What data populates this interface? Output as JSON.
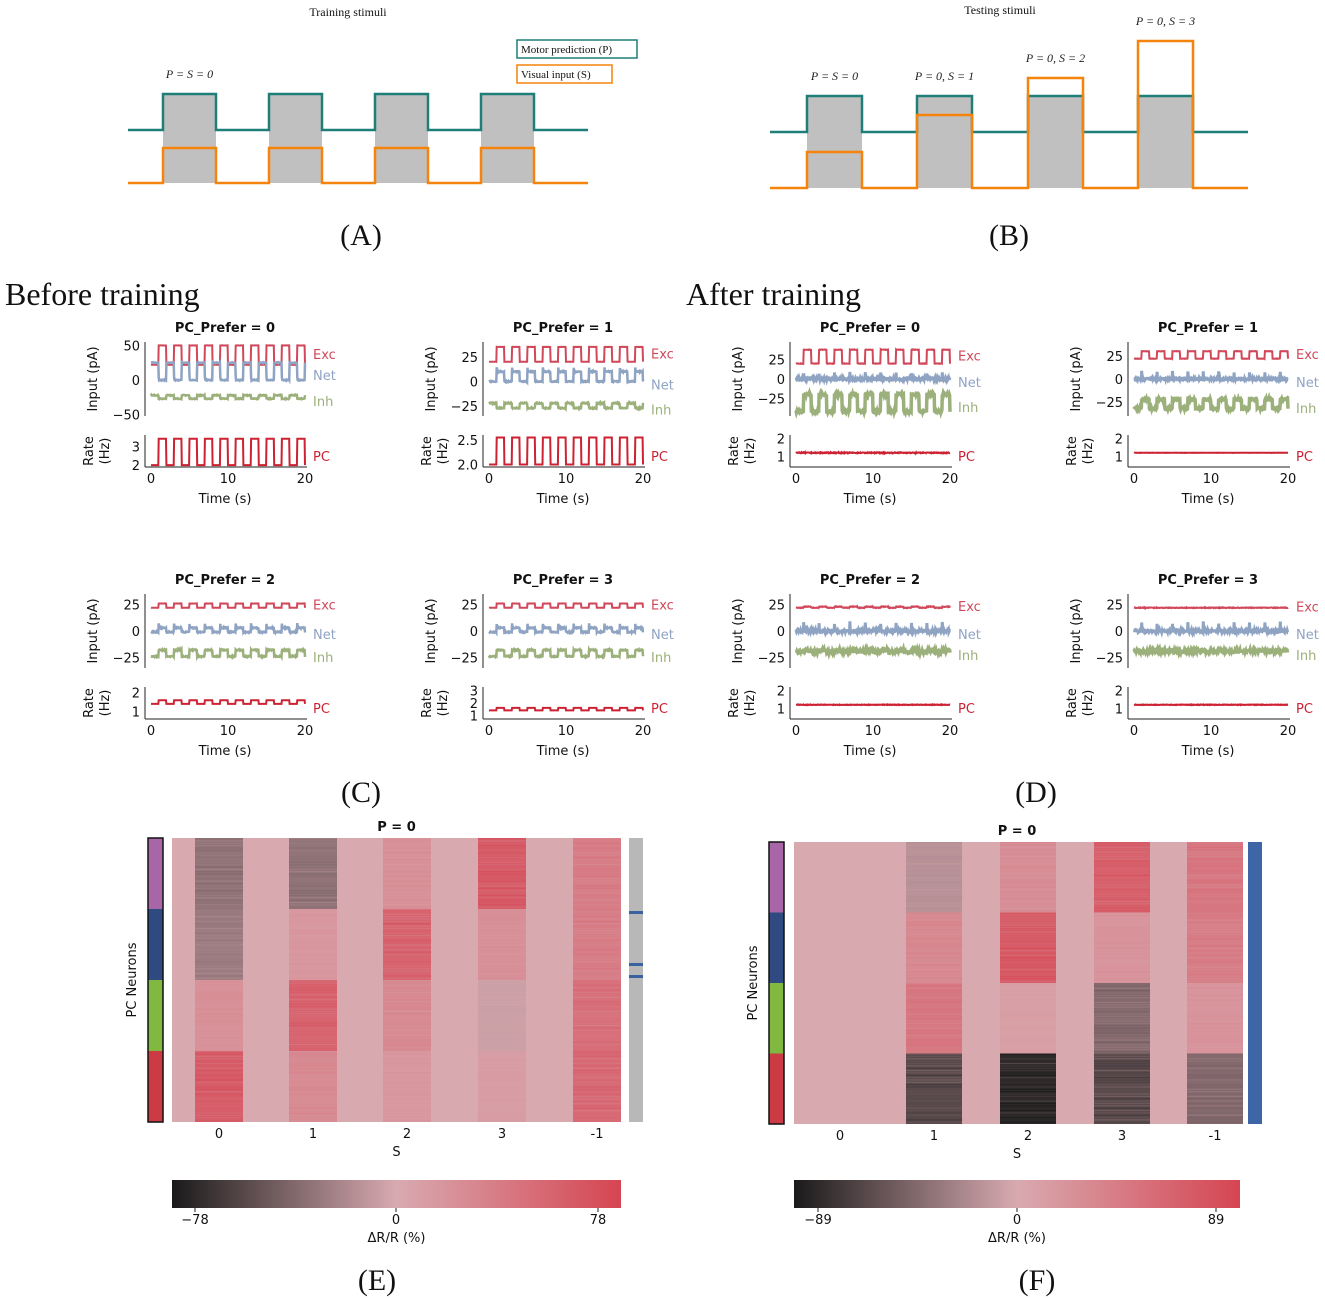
{
  "panel_labels": {
    "A": "(A)",
    "B": "(B)",
    "C": "(C)",
    "D": "(D)",
    "E": "(E)",
    "F": "(F)"
  },
  "section_titles": {
    "before": "Before training",
    "after": "After training"
  },
  "colors": {
    "teal": "#1f7f78",
    "orange": "#f5840c",
    "stim_gray": "#c0c0c0",
    "exc": "#d0485a",
    "net": "#8fa3c3",
    "inh": "#9bb07a",
    "pc": "#cc2233"
  },
  "chart_data": [
    {
      "id": "A",
      "type": "line",
      "title": "Training stimuli",
      "legend": [
        "Motor prediction (P)",
        "Visual input (S)"
      ],
      "pulses": [
        {
          "label": "P = S = 0",
          "P": 1,
          "S": 1
        },
        {
          "label": "",
          "P": 1,
          "S": 1
        },
        {
          "label": "",
          "P": 1,
          "S": 1
        },
        {
          "label": "",
          "P": 1,
          "S": 1
        }
      ]
    },
    {
      "id": "B",
      "type": "line",
      "title": "Testing stimuli",
      "pulses": [
        {
          "label": "P = S = 0",
          "P": 1,
          "S": 1
        },
        {
          "label": "P = 0, S = 1",
          "P": 1,
          "S": 2
        },
        {
          "label": "P = 0, S = 2",
          "P": 1,
          "S": 3
        },
        {
          "label": "P = 0, S = 3",
          "P": 1,
          "S": 4
        }
      ]
    },
    {
      "id": "C",
      "type": "line",
      "group": "Before training",
      "xlabel": "Time (s)",
      "xticks": [
        0,
        10,
        20
      ],
      "input_ylabel": "Input (pA)",
      "rate_ylabel": [
        "Rate",
        "(Hz)"
      ],
      "legend": [
        "Exc",
        "Net",
        "Inh",
        "PC"
      ],
      "subplots": [
        {
          "title": "PC_Prefer = 0",
          "in_ylim": [
            -52,
            55
          ],
          "in_ticks": [
            "50",
            "0",
            "−50"
          ],
          "in_tickvals": [
            50,
            0,
            -50
          ],
          "exc": [
            22,
            50
          ],
          "net": [
            25,
            0
          ],
          "inh": [
            -22,
            -27
          ],
          "noise": 1,
          "r_ylim": [
            1.9,
            3.6
          ],
          "r_ticks": [
            "3",
            "2"
          ],
          "r_tickvals": [
            3,
            2
          ],
          "pc": [
            2,
            3.4
          ],
          "pcnoise": 0
        },
        {
          "title": "PC_Prefer = 1",
          "in_ylim": [
            -35,
            40
          ],
          "in_ticks": [
            "25",
            "0",
            "−25"
          ],
          "in_tickvals": [
            25,
            0,
            -25
          ],
          "exc": [
            20,
            35
          ],
          "net": [
            0,
            10
          ],
          "inh": [
            -22,
            -27
          ],
          "noise": 1,
          "r_ylim": [
            1.95,
            2.6
          ],
          "r_ticks": [
            "2.5",
            "2.0"
          ],
          "r_tickvals": [
            2.5,
            2.0
          ],
          "pc": [
            2.0,
            2.55
          ],
          "pcnoise": 0
        },
        {
          "title": "PC_Prefer = 2",
          "in_ylim": [
            -35,
            35
          ],
          "in_ticks": [
            "25",
            "0",
            "−25"
          ],
          "in_tickvals": [
            25,
            0,
            -25
          ],
          "exc": [
            22,
            26
          ],
          "net": [
            -1,
            3
          ],
          "inh": [
            -24,
            -18
          ],
          "noise": 1,
          "r_ylim": [
            0.6,
            2.3
          ],
          "r_ticks": [
            "2",
            "1"
          ],
          "r_tickvals": [
            2,
            1
          ],
          "pc": [
            1.4,
            1.6
          ],
          "pcnoise": 0
        },
        {
          "title": "PC_Prefer = 3",
          "in_ylim": [
            -35,
            35
          ],
          "in_ticks": [
            "25",
            "0",
            "−25"
          ],
          "in_tickvals": [
            25,
            0,
            -25
          ],
          "exc": [
            22,
            26
          ],
          "net": [
            -1,
            3
          ],
          "inh": [
            -24,
            -18
          ],
          "noise": 1,
          "r_ylim": [
            0.7,
            3.3
          ],
          "r_ticks": [
            "3",
            "2",
            "1"
          ],
          "r_tickvals": [
            3,
            2,
            1
          ],
          "pc": [
            1.4,
            1.6
          ],
          "pcnoise": 0
        }
      ]
    },
    {
      "id": "D",
      "type": "line",
      "group": "After training",
      "xlabel": "Time (s)",
      "xticks": [
        0,
        10,
        20
      ],
      "input_ylabel": "Input (pA)",
      "rate_ylabel": [
        "Rate",
        "(Hz)"
      ],
      "legend": [
        "Exc",
        "Net",
        "Inh",
        "PC"
      ],
      "subplots": [
        {
          "title": "PC_Prefer = 0",
          "in_ylim": [
            -48,
            48
          ],
          "in_ticks": [
            "25",
            "0",
            "−25"
          ],
          "in_tickvals": [
            25,
            0,
            -25
          ],
          "exc": [
            20,
            38
          ],
          "net": [
            0,
            0
          ],
          "inh": [
            -42,
            -20
          ],
          "noise": 3,
          "r_ylim": [
            0.4,
            2.2
          ],
          "r_ticks": [
            "2",
            "1"
          ],
          "r_tickvals": [
            2,
            1
          ],
          "pc": [
            1.2,
            1.2
          ],
          "pcnoise": 0.05
        },
        {
          "title": "PC_Prefer = 1",
          "in_ylim": [
            -40,
            40
          ],
          "in_ticks": [
            "25",
            "0",
            "−25"
          ],
          "in_tickvals": [
            25,
            0,
            -25
          ],
          "exc": [
            22,
            30
          ],
          "net": [
            0,
            0
          ],
          "inh": [
            -32,
            -22
          ],
          "noise": 2,
          "r_ylim": [
            0.4,
            2.2
          ],
          "r_ticks": [
            "2",
            "1"
          ],
          "r_tickvals": [
            2,
            1
          ],
          "pc": [
            1.2,
            1.2
          ],
          "pcnoise": 0.01
        },
        {
          "title": "PC_Prefer = 2",
          "in_ylim": [
            -35,
            35
          ],
          "in_ticks": [
            "25",
            "0",
            "−25"
          ],
          "in_tickvals": [
            25,
            0,
            -25
          ],
          "exc": [
            22,
            23
          ],
          "net": [
            0,
            0
          ],
          "inh": [
            -20,
            -18
          ],
          "noise": 3,
          "r_ylim": [
            0.4,
            2.2
          ],
          "r_ticks": [
            "2",
            "1"
          ],
          "r_tickvals": [
            2,
            1
          ],
          "pc": [
            1.2,
            1.2
          ],
          "pcnoise": 0.03
        },
        {
          "title": "PC_Prefer = 3",
          "in_ylim": [
            -35,
            35
          ],
          "in_ticks": [
            "25",
            "0",
            "−25"
          ],
          "in_tickvals": [
            25,
            0,
            -25
          ],
          "exc": [
            22,
            22
          ],
          "net": [
            0,
            0
          ],
          "inh": [
            -19,
            -19
          ],
          "noise": 3,
          "r_ylim": [
            0.4,
            2.2
          ],
          "r_ticks": [
            "2",
            "1"
          ],
          "r_tickvals": [
            2,
            1
          ],
          "pc": [
            1.2,
            1.2
          ],
          "pcnoise": 0.03
        }
      ]
    },
    {
      "id": "E",
      "type": "heatmap",
      "title": "P = 0",
      "xlabel": "S",
      "ylabel": "PC Neurons",
      "categories": [
        "0",
        "1",
        "2",
        "3",
        "-1"
      ],
      "groups": [
        "#a866a8",
        "#2e4a80",
        "#80b840",
        "#cc3a44"
      ],
      "values": [
        [
          -30,
          -30,
          20,
          60,
          35
        ],
        [
          -25,
          15,
          55,
          20,
          35
        ],
        [
          20,
          55,
          25,
          -5,
          45
        ],
        [
          60,
          25,
          15,
          10,
          50
        ]
      ],
      "colorbar": {
        "label": "ΔR/R (%)",
        "range": [
          -78,
          78
        ],
        "ticks": [
          "−78",
          "0",
          "78"
        ]
      },
      "side_bar": "gray"
    },
    {
      "id": "F",
      "type": "heatmap",
      "title": "P = 0",
      "xlabel": "S",
      "ylabel": "PC Neurons",
      "categories": [
        "0",
        "1",
        "2",
        "3",
        "-1"
      ],
      "groups": [
        "#a866a8",
        "#2e4a80",
        "#80b840",
        "#cc3a44"
      ],
      "values": [
        [
          0,
          -15,
          25,
          65,
          45
        ],
        [
          0,
          30,
          70,
          20,
          40
        ],
        [
          0,
          45,
          10,
          -40,
          20
        ],
        [
          0,
          -60,
          -80,
          -60,
          -40
        ]
      ],
      "colorbar": {
        "label": "ΔR/R (%)",
        "range": [
          -89,
          89
        ],
        "ticks": [
          "−89",
          "0",
          "89"
        ]
      },
      "side_bar": "blue"
    }
  ]
}
